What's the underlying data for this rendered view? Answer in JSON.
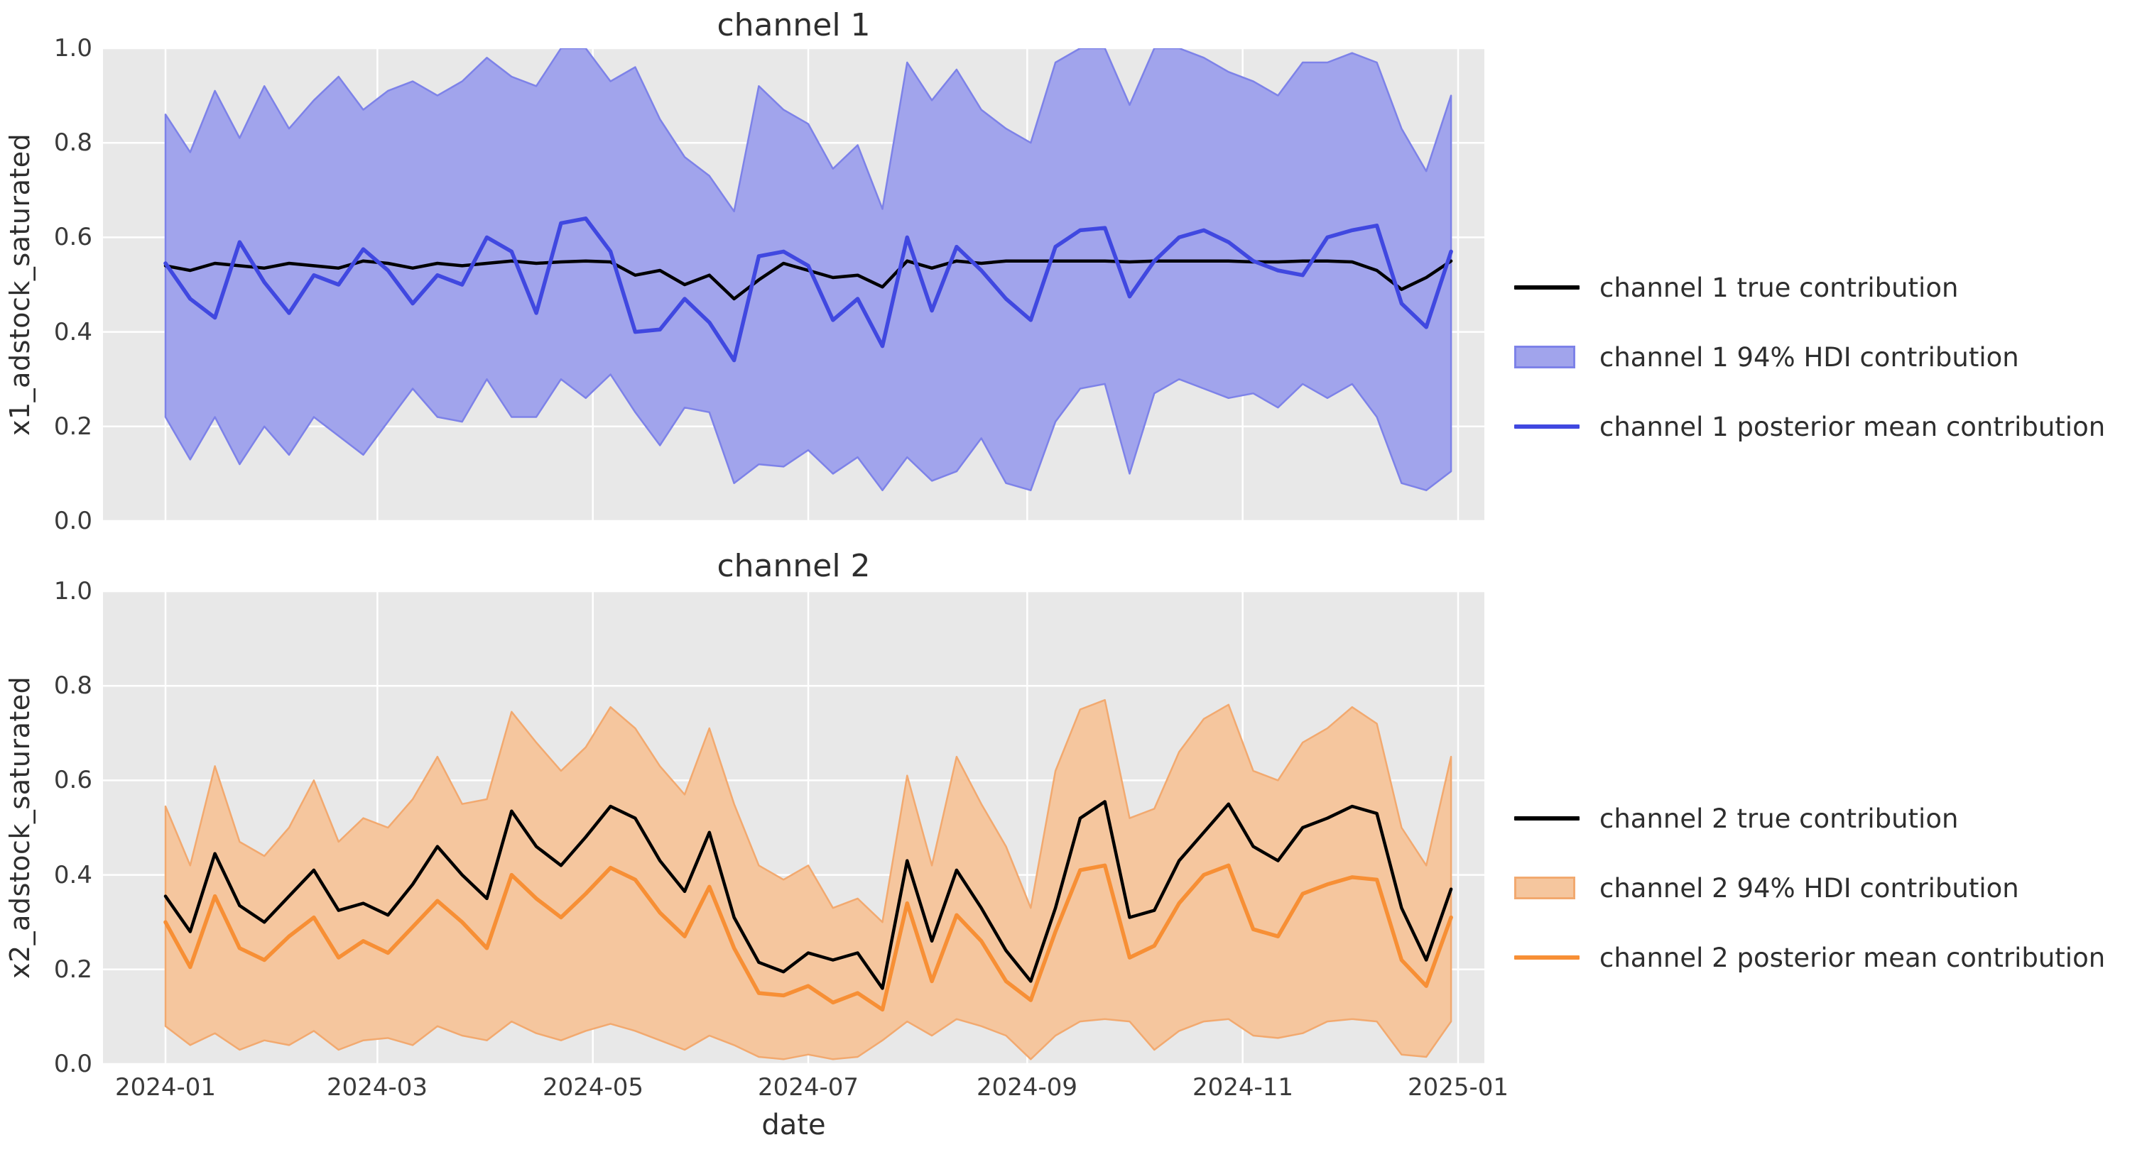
{
  "figure": {
    "background": "#ffffff",
    "axes_background": "#e8e8e8",
    "grid_color": "#ffffff",
    "title_color": "#2e2e2e",
    "tick_color": "#3a3a3a"
  },
  "x_axis": {
    "label": "date",
    "tick_labels": [
      "2024-01",
      "2024-03",
      "2024-05",
      "2024-07",
      "2024-09",
      "2024-11",
      "2025-01"
    ],
    "tick_days": [
      0,
      60,
      121,
      182,
      244,
      305,
      366
    ]
  },
  "y_axis": {
    "tick_labels": [
      "0.0",
      "0.2",
      "0.4",
      "0.6",
      "0.8",
      "1.0"
    ],
    "tick_values": [
      0.0,
      0.2,
      0.4,
      0.6,
      0.8,
      1.0
    ]
  },
  "dates": [
    "2024-01-01",
    "2024-01-08",
    "2024-01-15",
    "2024-01-22",
    "2024-01-29",
    "2024-02-05",
    "2024-02-12",
    "2024-02-19",
    "2024-02-26",
    "2024-03-04",
    "2024-03-11",
    "2024-03-18",
    "2024-03-25",
    "2024-04-01",
    "2024-04-08",
    "2024-04-15",
    "2024-04-22",
    "2024-04-29",
    "2024-05-06",
    "2024-05-13",
    "2024-05-20",
    "2024-05-27",
    "2024-06-03",
    "2024-06-10",
    "2024-06-17",
    "2024-06-24",
    "2024-07-01",
    "2024-07-08",
    "2024-07-15",
    "2024-07-22",
    "2024-07-29",
    "2024-08-05",
    "2024-08-12",
    "2024-08-19",
    "2024-08-26",
    "2024-09-02",
    "2024-09-09",
    "2024-09-16",
    "2024-09-23",
    "2024-09-30",
    "2024-10-07",
    "2024-10-14",
    "2024-10-21",
    "2024-10-28",
    "2024-11-04",
    "2024-11-11",
    "2024-11-18",
    "2024-11-25",
    "2024-12-02",
    "2024-12-09",
    "2024-12-16",
    "2024-12-23",
    "2024-12-30"
  ],
  "chart_data": [
    {
      "type": "line",
      "title": "channel 1",
      "xlabel": "date",
      "ylabel": "x1_adstock_saturated",
      "ylim": [
        0.0,
        1.0
      ],
      "grid": true,
      "legend_position": "right",
      "series": [
        {
          "name": "channel 1 true contribution",
          "kind": "line",
          "color": "#000000",
          "values": [
            0.54,
            0.53,
            0.545,
            0.54,
            0.535,
            0.545,
            0.54,
            0.535,
            0.55,
            0.545,
            0.535,
            0.545,
            0.54,
            0.545,
            0.55,
            0.545,
            0.548,
            0.55,
            0.548,
            0.52,
            0.53,
            0.5,
            0.52,
            0.47,
            0.51,
            0.545,
            0.53,
            0.515,
            0.52,
            0.495,
            0.55,
            0.535,
            0.55,
            0.545,
            0.55,
            0.55,
            0.55,
            0.55,
            0.55,
            0.548,
            0.55,
            0.55,
            0.55,
            0.55,
            0.548,
            0.548,
            0.55,
            0.55,
            0.548,
            0.53,
            0.49,
            0.515,
            0.55
          ]
        },
        {
          "name": "channel 1 94% HDI contribution",
          "kind": "band",
          "fill_color": "#a1a4ec",
          "edge_color": "#7d82e8",
          "lower": [
            0.22,
            0.13,
            0.22,
            0.12,
            0.2,
            0.14,
            0.22,
            0.18,
            0.14,
            0.21,
            0.28,
            0.22,
            0.21,
            0.3,
            0.22,
            0.22,
            0.3,
            0.26,
            0.31,
            0.23,
            0.16,
            0.24,
            0.23,
            0.08,
            0.12,
            0.115,
            0.15,
            0.1,
            0.135,
            0.065,
            0.135,
            0.085,
            0.105,
            0.175,
            0.08,
            0.065,
            0.21,
            0.28,
            0.29,
            0.1,
            0.27,
            0.3,
            0.28,
            0.26,
            0.27,
            0.24,
            0.29,
            0.26,
            0.29,
            0.22,
            0.08,
            0.065,
            0.105
          ],
          "upper": [
            0.86,
            0.78,
            0.91,
            0.81,
            0.92,
            0.83,
            0.89,
            0.94,
            0.87,
            0.91,
            0.93,
            0.9,
            0.93,
            0.98,
            0.94,
            0.92,
            1.0,
            1.0,
            0.93,
            0.96,
            0.85,
            0.77,
            0.73,
            0.655,
            0.92,
            0.87,
            0.84,
            0.745,
            0.795,
            0.66,
            0.97,
            0.89,
            0.955,
            0.87,
            0.83,
            0.8,
            0.97,
            1.0,
            1.0,
            0.88,
            1.0,
            1.0,
            0.98,
            0.95,
            0.93,
            0.9,
            0.97,
            0.97,
            0.99,
            0.97,
            0.83,
            0.74,
            0.9
          ]
        },
        {
          "name": "channel 1 posterior mean contribution",
          "kind": "line",
          "color": "#4048e0",
          "values": [
            0.545,
            0.47,
            0.43,
            0.59,
            0.505,
            0.44,
            0.52,
            0.5,
            0.575,
            0.53,
            0.46,
            0.52,
            0.5,
            0.6,
            0.57,
            0.44,
            0.63,
            0.64,
            0.57,
            0.4,
            0.405,
            0.47,
            0.42,
            0.34,
            0.56,
            0.57,
            0.54,
            0.425,
            0.47,
            0.37,
            0.6,
            0.445,
            0.58,
            0.53,
            0.47,
            0.425,
            0.58,
            0.615,
            0.62,
            0.475,
            0.55,
            0.6,
            0.615,
            0.59,
            0.55,
            0.53,
            0.52,
            0.6,
            0.615,
            0.625,
            0.46,
            0.41,
            0.57
          ]
        }
      ]
    },
    {
      "type": "line",
      "title": "channel 2",
      "xlabel": "date",
      "ylabel": "x2_adstock_saturated",
      "ylim": [
        0.0,
        1.0
      ],
      "grid": true,
      "legend_position": "right",
      "series": [
        {
          "name": "channel 2 true contribution",
          "kind": "line",
          "color": "#000000",
          "values": [
            0.355,
            0.28,
            0.445,
            0.335,
            0.3,
            0.355,
            0.41,
            0.325,
            0.34,
            0.315,
            0.38,
            0.46,
            0.4,
            0.35,
            0.535,
            0.46,
            0.42,
            0.48,
            0.545,
            0.52,
            0.43,
            0.365,
            0.49,
            0.31,
            0.215,
            0.195,
            0.235,
            0.22,
            0.235,
            0.16,
            0.43,
            0.26,
            0.41,
            0.33,
            0.24,
            0.175,
            0.33,
            0.52,
            0.555,
            0.31,
            0.325,
            0.43,
            0.49,
            0.55,
            0.46,
            0.43,
            0.5,
            0.52,
            0.545,
            0.53,
            0.33,
            0.22,
            0.37
          ]
        },
        {
          "name": "channel 2 94% HDI contribution",
          "kind": "band",
          "fill_color": "#f5c69e",
          "edge_color": "#f2a96f",
          "lower": [
            0.08,
            0.04,
            0.065,
            0.03,
            0.05,
            0.04,
            0.07,
            0.03,
            0.05,
            0.055,
            0.04,
            0.08,
            0.06,
            0.05,
            0.09,
            0.065,
            0.05,
            0.07,
            0.085,
            0.07,
            0.05,
            0.03,
            0.06,
            0.04,
            0.015,
            0.01,
            0.02,
            0.01,
            0.015,
            0.05,
            0.09,
            0.06,
            0.095,
            0.08,
            0.06,
            0.01,
            0.06,
            0.09,
            0.095,
            0.09,
            0.03,
            0.07,
            0.09,
            0.095,
            0.06,
            0.055,
            0.065,
            0.09,
            0.095,
            0.09,
            0.02,
            0.015,
            0.09
          ],
          "upper": [
            0.545,
            0.42,
            0.63,
            0.47,
            0.44,
            0.5,
            0.6,
            0.47,
            0.52,
            0.5,
            0.56,
            0.65,
            0.55,
            0.56,
            0.745,
            0.68,
            0.62,
            0.67,
            0.755,
            0.71,
            0.63,
            0.57,
            0.71,
            0.55,
            0.42,
            0.39,
            0.42,
            0.33,
            0.35,
            0.3,
            0.61,
            0.42,
            0.65,
            0.55,
            0.46,
            0.33,
            0.62,
            0.75,
            0.77,
            0.52,
            0.54,
            0.66,
            0.73,
            0.76,
            0.62,
            0.6,
            0.68,
            0.71,
            0.755,
            0.72,
            0.5,
            0.42,
            0.65
          ]
        },
        {
          "name": "channel 2 posterior mean contribution",
          "kind": "line",
          "color": "#f78f35",
          "values": [
            0.3,
            0.205,
            0.355,
            0.245,
            0.22,
            0.27,
            0.31,
            0.225,
            0.26,
            0.235,
            0.29,
            0.345,
            0.3,
            0.245,
            0.4,
            0.35,
            0.31,
            0.36,
            0.415,
            0.39,
            0.32,
            0.27,
            0.375,
            0.245,
            0.15,
            0.145,
            0.165,
            0.13,
            0.15,
            0.115,
            0.34,
            0.175,
            0.315,
            0.26,
            0.175,
            0.135,
            0.28,
            0.41,
            0.42,
            0.225,
            0.25,
            0.34,
            0.4,
            0.42,
            0.285,
            0.27,
            0.36,
            0.38,
            0.395,
            0.39,
            0.22,
            0.165,
            0.31
          ]
        }
      ]
    }
  ]
}
